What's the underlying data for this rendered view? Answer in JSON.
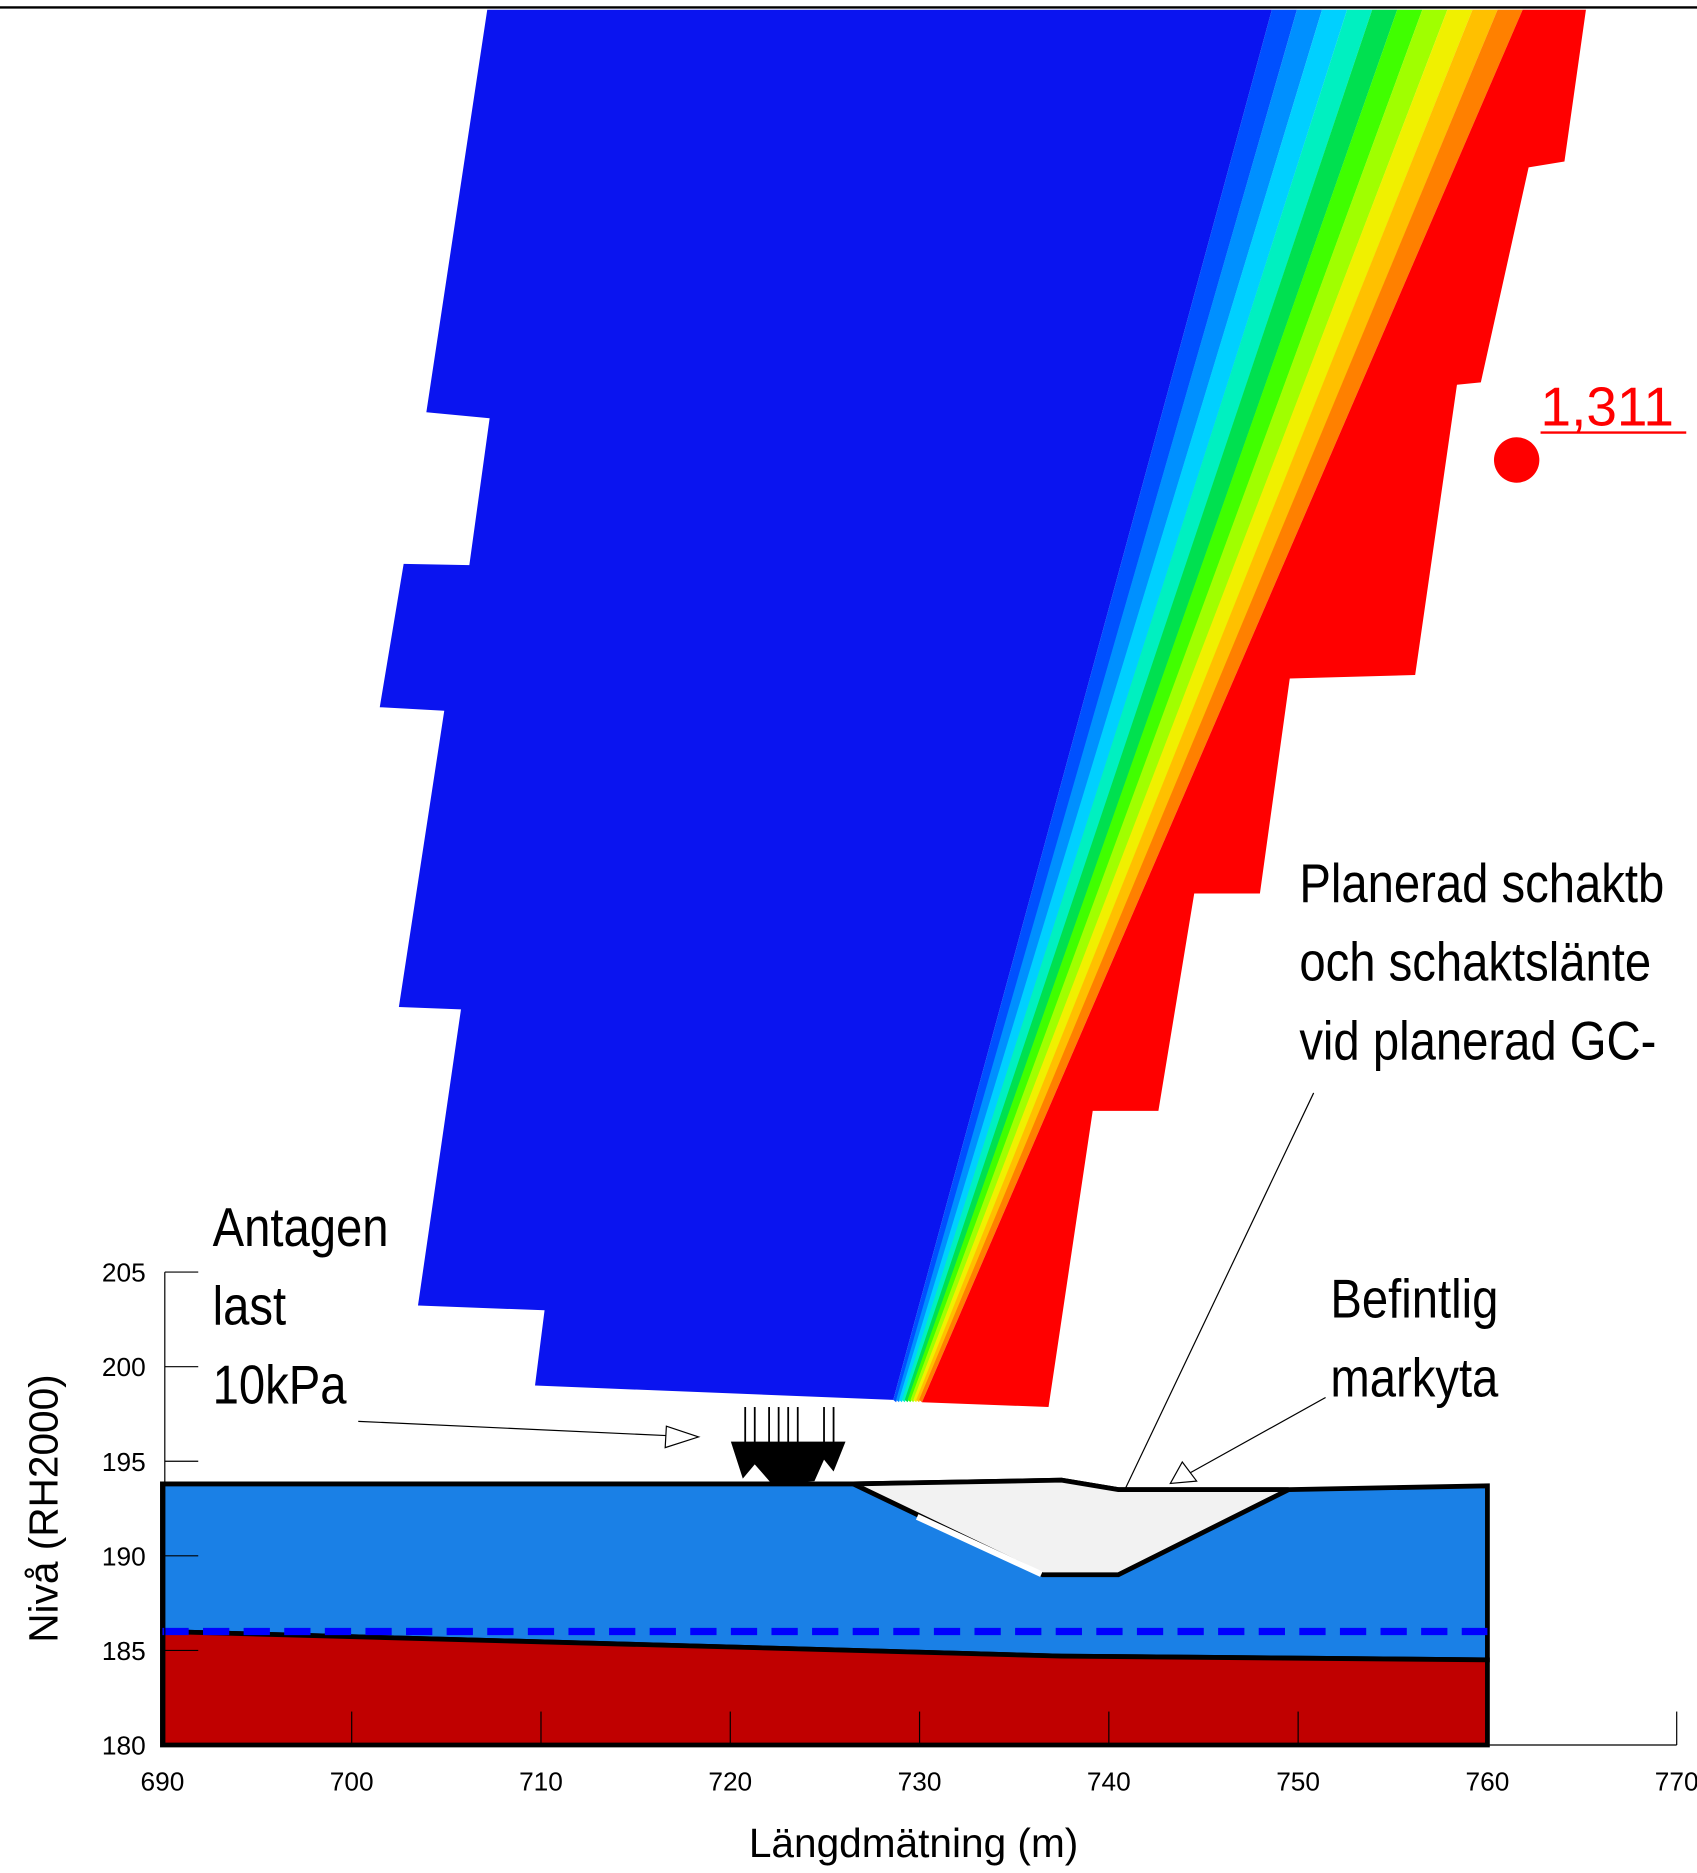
{
  "chart_data": {
    "type": "cross-section",
    "xlabel": "Längdmätning (m)",
    "ylabel": "Nivå (RH2000)",
    "xlim": [
      690,
      770
    ],
    "ylim": [
      180,
      205
    ],
    "xticks": [
      690,
      700,
      710,
      720,
      730,
      740,
      750,
      760,
      770
    ],
    "yticks": [
      180,
      185,
      190,
      195,
      200,
      205
    ],
    "layers": [
      {
        "color": "#1a80e6",
        "x": [
          690,
          726.5,
          737.5,
          740.5,
          749.5,
          760,
          760,
          737.5,
          690
        ],
        "y": [
          193.8,
          193.8,
          194.0,
          193.5,
          193.5,
          193.7,
          184.5,
          184.7,
          186.0
        ]
      },
      {
        "color": "#c00000",
        "x": [
          690,
          737.5,
          760,
          760,
          690
        ],
        "y": [
          186.0,
          184.7,
          184.5,
          180,
          180
        ]
      },
      {
        "color": "#f2f2f2",
        "x": [
          726.5,
          736.5,
          740.5,
          749.5,
          740.5,
          737.5
        ],
        "y": [
          193.8,
          189.0,
          189.0,
          193.5,
          193.5,
          194.0
        ]
      }
    ],
    "water_table": {
      "color": "#0000ff",
      "x": [
        690,
        760
      ],
      "y": [
        186.0,
        186.0
      ]
    },
    "factor_of_safety": {
      "value": 1.311,
      "label": "1,311",
      "color": "#ff0000"
    },
    "annotations": [
      {
        "lines": [
          "Antagen",
          "last",
          "10kPa"
        ]
      },
      {
        "lines": [
          "Planerad schaktb",
          "och schaktslänte",
          "vid planerad GC-"
        ]
      },
      {
        "lines": [
          "Befintlig",
          "markyta"
        ]
      }
    ]
  }
}
